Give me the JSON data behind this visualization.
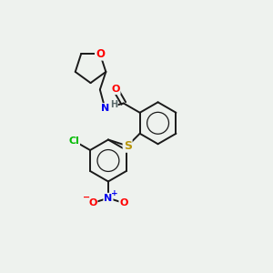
{
  "bg_color": "#eef2ee",
  "bond_color": "#1a1a1a",
  "atom_colors": {
    "O": "#ff0000",
    "N": "#0000ee",
    "S": "#b8960c",
    "Cl": "#00bb00",
    "H": "#5a6a6a",
    "C": "#1a1a1a"
  },
  "bond_lw": 1.4,
  "ring_lw": 1.0
}
